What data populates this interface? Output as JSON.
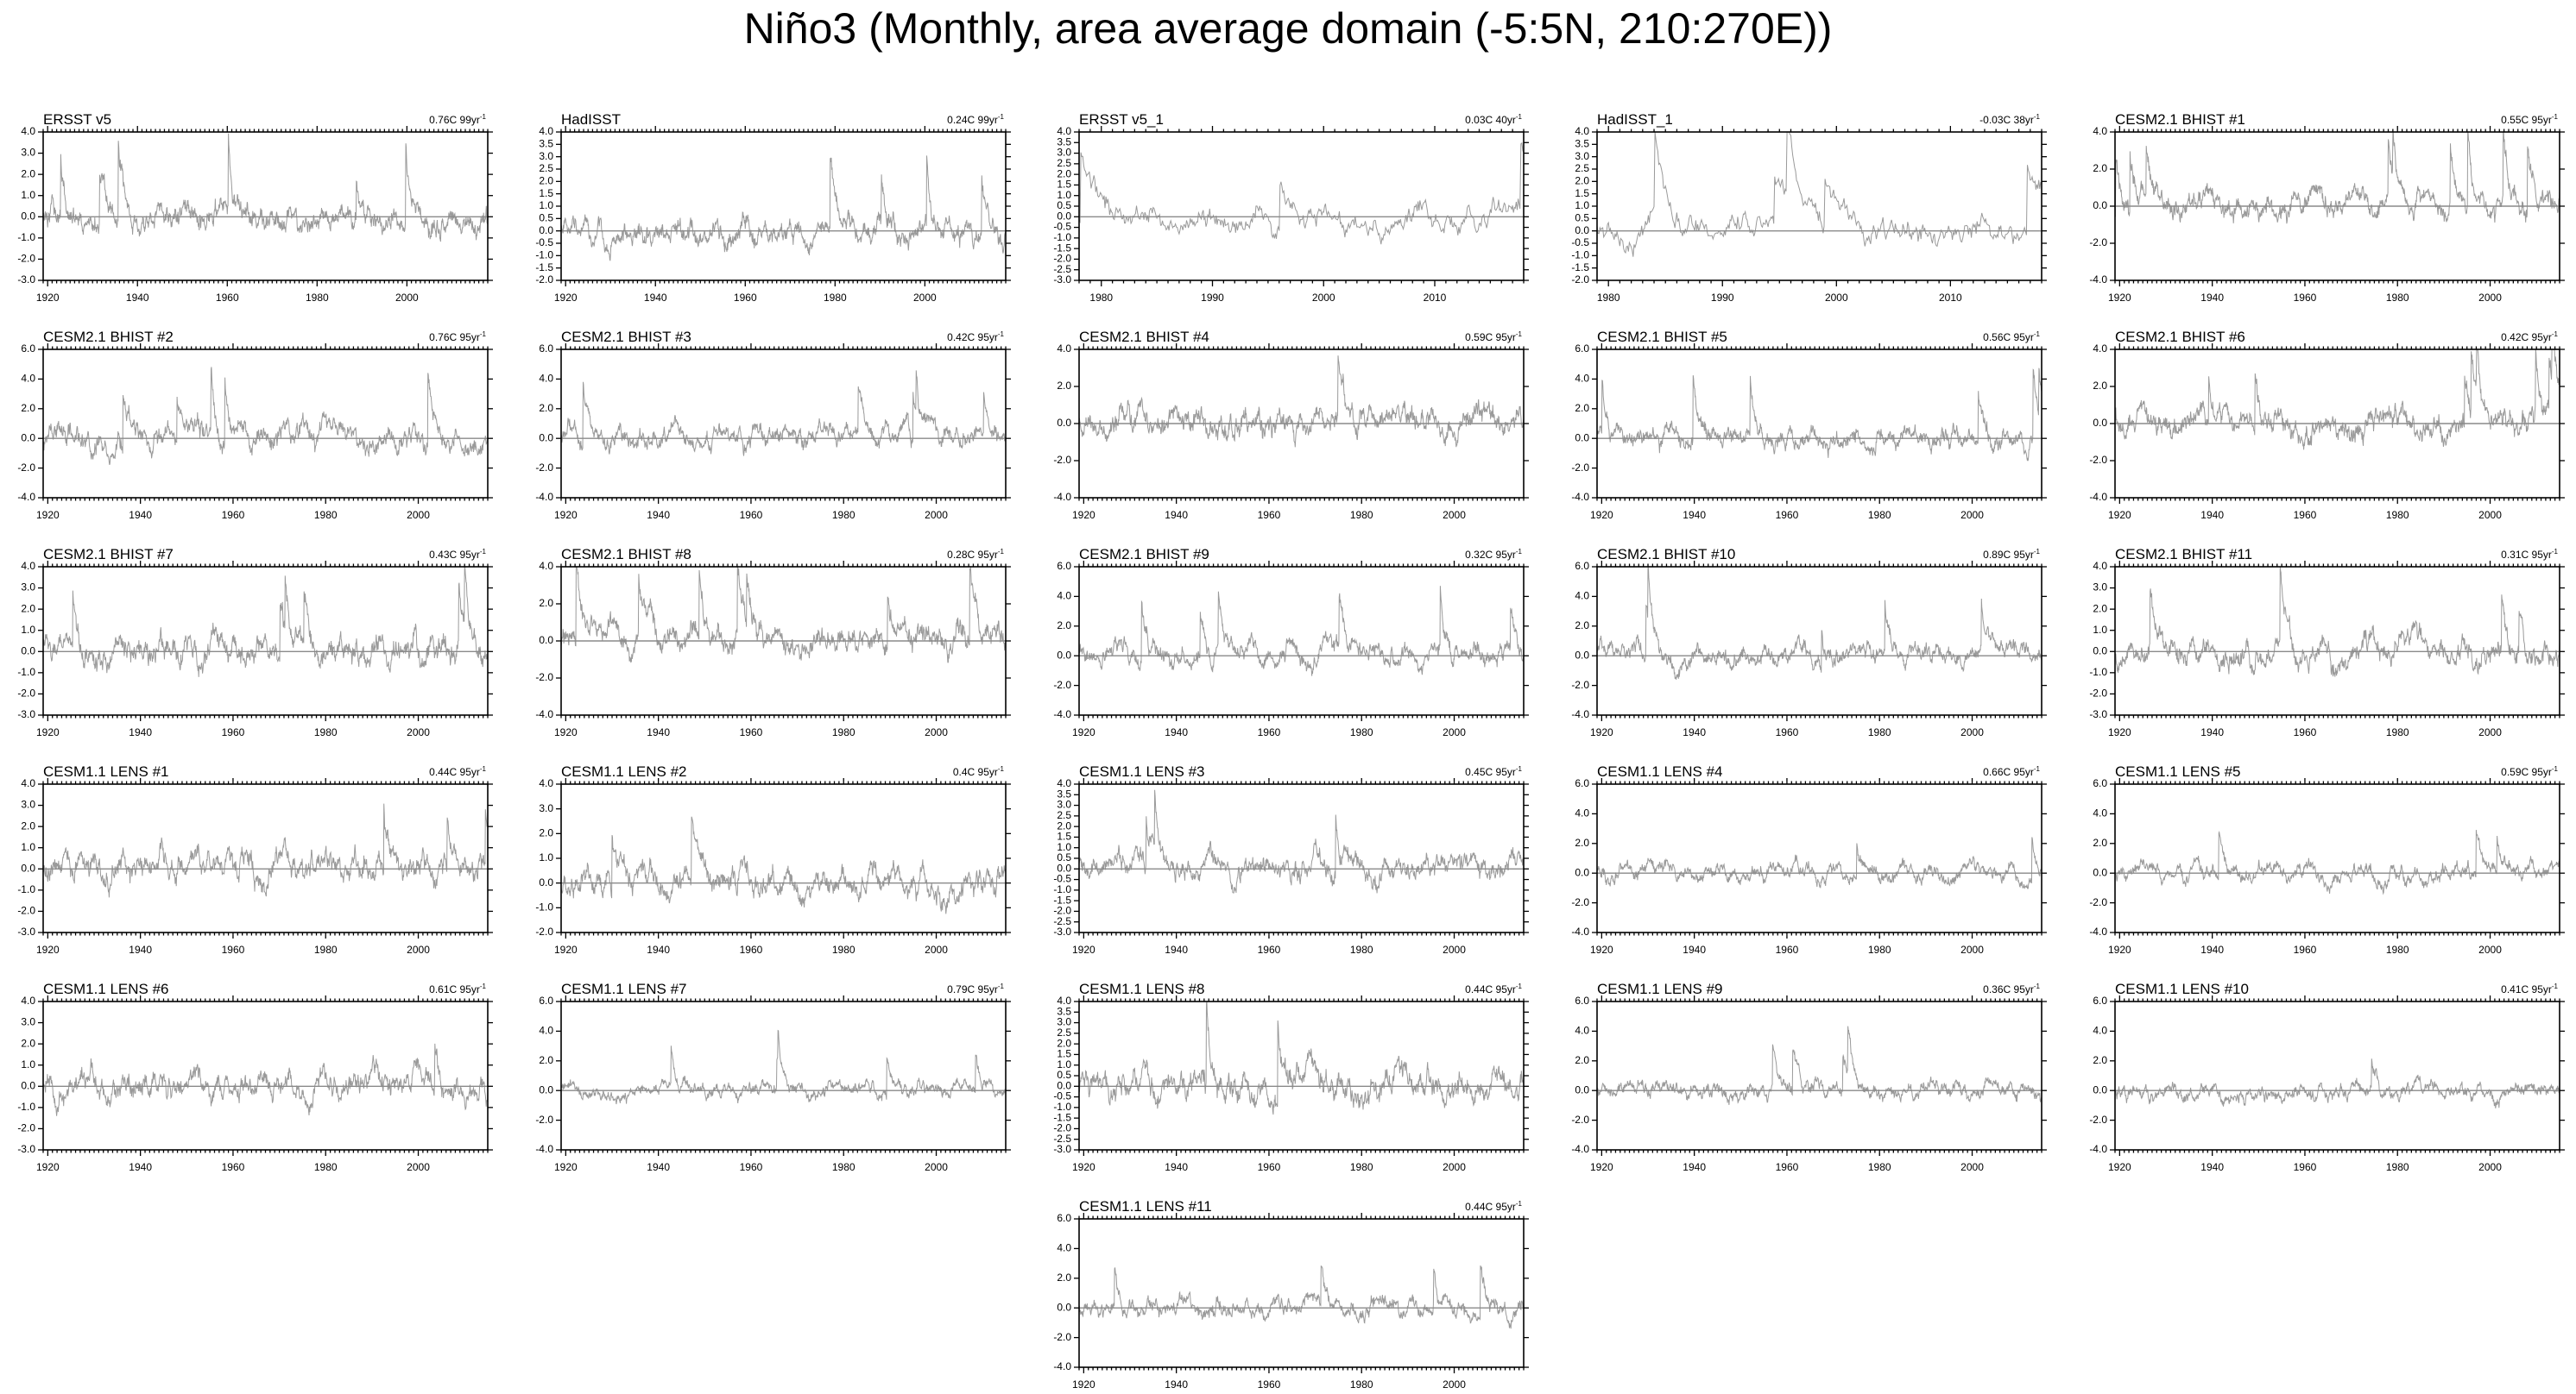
{
  "title": "Niño3 (Monthly, area average domain (-5:5N, 210:270E))",
  "style": {
    "line_color": "#9a9a9a",
    "zero_line_color": "#8a8a8a",
    "frame_color": "#000000"
  },
  "chart_data": [
    {
      "type": "line",
      "title": "ERSST v5",
      "stat": "0.76C 99yr",
      "stat_exp": "-1",
      "xlim": [
        1919,
        2018
      ],
      "ylim": [
        -3,
        4
      ],
      "yticks": [
        -3,
        -2,
        -1,
        0,
        1,
        2,
        3,
        4
      ],
      "xticks": [
        1920,
        1940,
        1960,
        1980,
        2000
      ],
      "amplitude": 1.0,
      "seed": 1
    },
    {
      "type": "line",
      "title": "HadISST",
      "stat": "0.24C 99yr",
      "stat_exp": "-1",
      "xlim": [
        1919,
        2018
      ],
      "ylim": [
        -2,
        4
      ],
      "yticks": [
        -2,
        -1.5,
        -1,
        -0.5,
        0,
        0.5,
        1,
        1.5,
        2,
        2.5,
        3,
        3.5,
        4
      ],
      "xticks": [
        1920,
        1940,
        1960,
        1980,
        2000
      ],
      "amplitude": 0.8,
      "seed": 2
    },
    {
      "type": "line",
      "title": "ERSST v5_1",
      "stat": "0.03C 40yr",
      "stat_exp": "-1",
      "xlim": [
        1978,
        2018
      ],
      "ylim": [
        -3,
        4
      ],
      "yticks": [
        -3,
        -2.5,
        -2,
        -1.5,
        -1,
        -0.5,
        0,
        0.5,
        1,
        1.5,
        2,
        2.5,
        3,
        3.5,
        4
      ],
      "xticks": [
        1980,
        1990,
        2000,
        2010
      ],
      "amplitude": 1.0,
      "seed": 3
    },
    {
      "type": "line",
      "title": "HadISST_1",
      "stat": "-0.03C 38yr",
      "stat_exp": "-1",
      "xlim": [
        1979,
        2018
      ],
      "ylim": [
        -2,
        4
      ],
      "yticks": [
        -2,
        -1.5,
        -1,
        -0.5,
        0,
        0.5,
        1,
        1.5,
        2,
        2.5,
        3,
        3.5,
        4
      ],
      "xticks": [
        1980,
        1990,
        2000,
        2010
      ],
      "amplitude": 0.9,
      "seed": 4
    },
    {
      "type": "line",
      "title": "CESM2.1 BHIST #1",
      "stat": "0.55C 95yr",
      "stat_exp": "-1",
      "xlim": [
        1919,
        2015
      ],
      "ylim": [
        -4,
        4
      ],
      "yticks": [
        -4,
        -2,
        0,
        2,
        4
      ],
      "xticks": [
        1920,
        1940,
        1960,
        1980,
        2000
      ],
      "amplitude": 1.1,
      "seed": 5
    },
    {
      "type": "line",
      "title": "CESM2.1 BHIST #2",
      "stat": "0.76C 95yr",
      "stat_exp": "-1",
      "xlim": [
        1919,
        2015
      ],
      "ylim": [
        -4,
        6
      ],
      "yticks": [
        -4,
        -2,
        0,
        2,
        4,
        6
      ],
      "xticks": [
        1920,
        1940,
        1960,
        1980,
        2000
      ],
      "amplitude": 1.3,
      "seed": 6
    },
    {
      "type": "line",
      "title": "CESM2.1 BHIST #3",
      "stat": "0.42C 95yr",
      "stat_exp": "-1",
      "xlim": [
        1919,
        2015
      ],
      "ylim": [
        -4,
        6
      ],
      "yticks": [
        -4,
        -2,
        0,
        2,
        4,
        6
      ],
      "xticks": [
        1920,
        1940,
        1960,
        1980,
        2000
      ],
      "amplitude": 1.2,
      "seed": 7
    },
    {
      "type": "line",
      "title": "CESM2.1 BHIST #4",
      "stat": "0.59C 95yr",
      "stat_exp": "-1",
      "xlim": [
        1919,
        2015
      ],
      "ylim": [
        -4,
        4
      ],
      "yticks": [
        -4,
        -2,
        0,
        2,
        4
      ],
      "xticks": [
        1920,
        1940,
        1960,
        1980,
        2000
      ],
      "amplitude": 1.2,
      "seed": 8
    },
    {
      "type": "line",
      "title": "CESM2.1 BHIST #5",
      "stat": "0.56C 95yr",
      "stat_exp": "-1",
      "xlim": [
        1919,
        2015
      ],
      "ylim": [
        -4,
        6
      ],
      "yticks": [
        -4,
        -2,
        0,
        2,
        4,
        6
      ],
      "xticks": [
        1920,
        1940,
        1960,
        1980,
        2000
      ],
      "amplitude": 1.2,
      "seed": 9
    },
    {
      "type": "line",
      "title": "CESM2.1 BHIST #6",
      "stat": "0.42C 95yr",
      "stat_exp": "-1",
      "xlim": [
        1919,
        2015
      ],
      "ylim": [
        -4,
        4
      ],
      "yticks": [
        -4,
        -2,
        0,
        2,
        4
      ],
      "xticks": [
        1920,
        1940,
        1960,
        1980,
        2000
      ],
      "amplitude": 1.2,
      "seed": 10
    },
    {
      "type": "line",
      "title": "CESM2.1 BHIST #7",
      "stat": "0.43C 95yr",
      "stat_exp": "-1",
      "xlim": [
        1919,
        2015
      ],
      "ylim": [
        -3,
        4
      ],
      "yticks": [
        -3,
        -2,
        -1,
        0,
        1,
        2,
        3,
        4
      ],
      "xticks": [
        1920,
        1940,
        1960,
        1980,
        2000
      ],
      "amplitude": 1.1,
      "seed": 11
    },
    {
      "type": "line",
      "title": "CESM2.1 BHIST #8",
      "stat": "0.28C 95yr",
      "stat_exp": "-1",
      "xlim": [
        1919,
        2015
      ],
      "ylim": [
        -4,
        4
      ],
      "yticks": [
        -4,
        -2,
        0,
        2,
        4
      ],
      "xticks": [
        1920,
        1940,
        1960,
        1980,
        2000
      ],
      "amplitude": 1.2,
      "seed": 12
    },
    {
      "type": "line",
      "title": "CESM2.1 BHIST #9",
      "stat": "0.32C 95yr",
      "stat_exp": "-1",
      "xlim": [
        1919,
        2015
      ],
      "ylim": [
        -4,
        6
      ],
      "yticks": [
        -4,
        -2,
        0,
        2,
        4,
        6
      ],
      "xticks": [
        1920,
        1940,
        1960,
        1980,
        2000
      ],
      "amplitude": 1.2,
      "seed": 13
    },
    {
      "type": "line",
      "title": "CESM2.1 BHIST #10",
      "stat": "0.89C 95yr",
      "stat_exp": "-1",
      "xlim": [
        1919,
        2015
      ],
      "ylim": [
        -4,
        6
      ],
      "yticks": [
        -4,
        -2,
        0,
        2,
        4,
        6
      ],
      "xticks": [
        1920,
        1940,
        1960,
        1980,
        2000
      ],
      "amplitude": 1.1,
      "seed": 14
    },
    {
      "type": "line",
      "title": "CESM2.1 BHIST #11",
      "stat": "0.31C 95yr",
      "stat_exp": "-1",
      "xlim": [
        1919,
        2015
      ],
      "ylim": [
        -3,
        4
      ],
      "yticks": [
        -3,
        -2,
        -1,
        0,
        1,
        2,
        3,
        4
      ],
      "xticks": [
        1920,
        1940,
        1960,
        1980,
        2000
      ],
      "amplitude": 1.0,
      "seed": 15
    },
    {
      "type": "line",
      "title": "CESM1.1 LENS #1",
      "stat": "0.44C 95yr",
      "stat_exp": "-1",
      "xlim": [
        1919,
        2015
      ],
      "ylim": [
        -3,
        4
      ],
      "yticks": [
        -3,
        -2,
        -1,
        0,
        1,
        2,
        3,
        4
      ],
      "xticks": [
        1920,
        1940,
        1960,
        1980,
        2000
      ],
      "amplitude": 1.1,
      "seed": 16
    },
    {
      "type": "line",
      "title": "CESM1.1 LENS #2",
      "stat": "0.4C 95yr",
      "stat_exp": "-1",
      "xlim": [
        1919,
        2015
      ],
      "ylim": [
        -2,
        4
      ],
      "yticks": [
        -2,
        -1,
        0,
        1,
        2,
        3,
        4
      ],
      "xticks": [
        1920,
        1940,
        1960,
        1980,
        2000
      ],
      "amplitude": 0.9,
      "seed": 17
    },
    {
      "type": "line",
      "title": "CESM1.1 LENS #3",
      "stat": "0.45C 95yr",
      "stat_exp": "-1",
      "xlim": [
        1919,
        2015
      ],
      "ylim": [
        -3,
        4
      ],
      "yticks": [
        -3,
        -2.5,
        -2,
        -1.5,
        -1,
        -0.5,
        0,
        0.5,
        1,
        1.5,
        2,
        2.5,
        3,
        3.5,
        4
      ],
      "xticks": [
        1920,
        1940,
        1960,
        1980,
        2000
      ],
      "amplitude": 0.9,
      "seed": 18
    },
    {
      "type": "line",
      "title": "CESM1.1 LENS #4",
      "stat": "0.66C 95yr",
      "stat_exp": "-1",
      "xlim": [
        1919,
        2015
      ],
      "ylim": [
        -4,
        6
      ],
      "yticks": [
        -4,
        -2,
        0,
        2,
        4,
        6
      ],
      "xticks": [
        1920,
        1940,
        1960,
        1980,
        2000
      ],
      "amplitude": 0.9,
      "seed": 19
    },
    {
      "type": "line",
      "title": "CESM1.1 LENS #5",
      "stat": "0.59C 95yr",
      "stat_exp": "-1",
      "xlim": [
        1919,
        2015
      ],
      "ylim": [
        -4,
        6
      ],
      "yticks": [
        -4,
        -2,
        0,
        2,
        4,
        6
      ],
      "xticks": [
        1920,
        1940,
        1960,
        1980,
        2000
      ],
      "amplitude": 0.9,
      "seed": 20
    },
    {
      "type": "line",
      "title": "CESM1.1 LENS #6",
      "stat": "0.61C 95yr",
      "stat_exp": "-1",
      "xlim": [
        1919,
        2015
      ],
      "ylim": [
        -3,
        4
      ],
      "yticks": [
        -3,
        -2,
        -1,
        0,
        1,
        2,
        3,
        4
      ],
      "xticks": [
        1920,
        1940,
        1960,
        1980,
        2000
      ],
      "amplitude": 1.0,
      "seed": 21
    },
    {
      "type": "line",
      "title": "CESM1.1 LENS #7",
      "stat": "0.79C 95yr",
      "stat_exp": "-1",
      "xlim": [
        1919,
        2015
      ],
      "ylim": [
        -4,
        6
      ],
      "yticks": [
        -4,
        -2,
        0,
        2,
        4,
        6
      ],
      "xticks": [
        1920,
        1940,
        1960,
        1980,
        2000
      ],
      "amplitude": 0.8,
      "seed": 22
    },
    {
      "type": "line",
      "title": "CESM1.1 LENS #8",
      "stat": "0.44C 95yr",
      "stat_exp": "-1",
      "xlim": [
        1919,
        2015
      ],
      "ylim": [
        -3,
        4
      ],
      "yticks": [
        -3,
        -2.5,
        -2,
        -1.5,
        -1,
        -0.5,
        0,
        0.5,
        1,
        1.5,
        2,
        2.5,
        3,
        3.5,
        4
      ],
      "xticks": [
        1920,
        1940,
        1960,
        1980,
        2000
      ],
      "amplitude": 1.1,
      "seed": 23
    },
    {
      "type": "line",
      "title": "CESM1.1 LENS #9",
      "stat": "0.36C 95yr",
      "stat_exp": "-1",
      "xlim": [
        1919,
        2015
      ],
      "ylim": [
        -4,
        6
      ],
      "yticks": [
        -4,
        -2,
        0,
        2,
        4,
        6
      ],
      "xticks": [
        1920,
        1940,
        1960,
        1980,
        2000
      ],
      "amplitude": 0.9,
      "seed": 24
    },
    {
      "type": "line",
      "title": "CESM1.1 LENS #10",
      "stat": "0.41C 95yr",
      "stat_exp": "-1",
      "xlim": [
        1919,
        2015
      ],
      "ylim": [
        -4,
        6
      ],
      "yticks": [
        -4,
        -2,
        0,
        2,
        4,
        6
      ],
      "xticks": [
        1920,
        1940,
        1960,
        1980,
        2000
      ],
      "amplitude": 0.9,
      "seed": 25
    },
    {
      "type": "line",
      "title": "CESM1.1 LENS #11",
      "stat": "0.44C 95yr",
      "stat_exp": "-1",
      "xlim": [
        1919,
        2015
      ],
      "ylim": [
        -4,
        6
      ],
      "yticks": [
        -4,
        -2,
        0,
        2,
        4,
        6
      ],
      "xticks": [
        1920,
        1940,
        1960,
        1980,
        2000
      ],
      "amplitude": 1.0,
      "seed": 26
    }
  ]
}
